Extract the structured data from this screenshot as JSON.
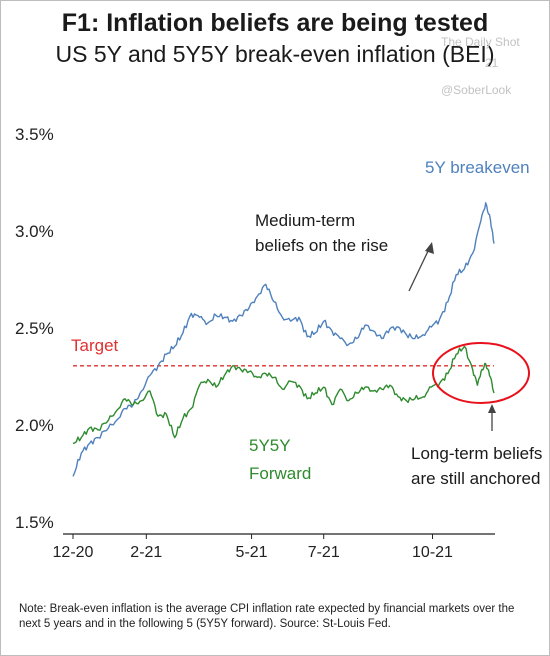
{
  "header": {
    "title": "F1: Inflation beliefs are being tested",
    "subtitle": "US 5Y and 5Y5Y break-even inflation (BEI)"
  },
  "watermark": {
    "line1": "The Daily Shot",
    "line2": "21",
    "handle": "@SoberLook"
  },
  "note": "Note: Break-even inflation is the average CPI inflation rate expected by financial markets over the next 5 years and in the following 5 (5Y5Y forward). Source: St-Louis Fed.",
  "colors": {
    "blue": "#4f81bd",
    "green": "#2e8b2e",
    "target": "#e03030",
    "circle": "#e8101a",
    "annotation": "#444444"
  },
  "chart_data": {
    "type": "line",
    "x_ticks": [
      "12-20",
      "2-21",
      "5-21",
      "7-21",
      "10-21"
    ],
    "y_ticks": [
      "1.5%",
      "2.0%",
      "2.5%",
      "3.0%",
      "3.5%"
    ],
    "ylim": [
      1.5,
      3.5
    ],
    "grid": false,
    "series": [
      {
        "name": "5Y breakeven",
        "color": "#4f81bd",
        "points": [
          [
            "2020-12-01",
            1.73
          ],
          [
            "2020-12-08",
            1.85
          ],
          [
            "2020-12-15",
            1.9
          ],
          [
            "2020-12-22",
            1.93
          ],
          [
            "2020-12-31",
            1.98
          ],
          [
            "2021-01-07",
            2.02
          ],
          [
            "2021-01-14",
            2.08
          ],
          [
            "2021-01-21",
            2.1
          ],
          [
            "2021-01-28",
            2.17
          ],
          [
            "2021-02-04",
            2.25
          ],
          [
            "2021-02-11",
            2.3
          ],
          [
            "2021-02-18",
            2.36
          ],
          [
            "2021-02-25",
            2.4
          ],
          [
            "2021-03-04",
            2.47
          ],
          [
            "2021-03-11",
            2.57
          ],
          [
            "2021-03-18",
            2.55
          ],
          [
            "2021-03-25",
            2.52
          ],
          [
            "2021-04-01",
            2.56
          ],
          [
            "2021-04-08",
            2.55
          ],
          [
            "2021-04-15",
            2.53
          ],
          [
            "2021-04-22",
            2.56
          ],
          [
            "2021-04-29",
            2.6
          ],
          [
            "2021-05-06",
            2.66
          ],
          [
            "2021-05-13",
            2.72
          ],
          [
            "2021-05-20",
            2.63
          ],
          [
            "2021-05-27",
            2.55
          ],
          [
            "2021-06-03",
            2.53
          ],
          [
            "2021-06-10",
            2.55
          ],
          [
            "2021-06-17",
            2.45
          ],
          [
            "2021-06-24",
            2.47
          ],
          [
            "2021-07-01",
            2.53
          ],
          [
            "2021-07-08",
            2.48
          ],
          [
            "2021-07-15",
            2.44
          ],
          [
            "2021-07-22",
            2.41
          ],
          [
            "2021-07-29",
            2.44
          ],
          [
            "2021-08-05",
            2.51
          ],
          [
            "2021-08-12",
            2.48
          ],
          [
            "2021-08-19",
            2.44
          ],
          [
            "2021-08-26",
            2.49
          ],
          [
            "2021-09-02",
            2.5
          ],
          [
            "2021-09-09",
            2.46
          ],
          [
            "2021-09-16",
            2.44
          ],
          [
            "2021-09-23",
            2.46
          ],
          [
            "2021-09-30",
            2.5
          ],
          [
            "2021-10-07",
            2.54
          ],
          [
            "2021-10-14",
            2.63
          ],
          [
            "2021-10-21",
            2.77
          ],
          [
            "2021-10-28",
            2.8
          ],
          [
            "2021-11-04",
            2.88
          ],
          [
            "2021-11-11",
            3.05
          ],
          [
            "2021-11-15",
            3.14
          ],
          [
            "2021-11-19",
            3.05
          ],
          [
            "2021-11-22",
            2.93
          ]
        ]
      },
      {
        "name": "5Y5Y Forward",
        "color": "#2e8b2e",
        "points": [
          [
            "2020-12-01",
            1.9
          ],
          [
            "2020-12-08",
            1.93
          ],
          [
            "2020-12-15",
            1.98
          ],
          [
            "2020-12-22",
            1.97
          ],
          [
            "2020-12-31",
            2.02
          ],
          [
            "2021-01-07",
            2.07
          ],
          [
            "2021-01-14",
            2.13
          ],
          [
            "2021-01-21",
            2.1
          ],
          [
            "2021-01-28",
            2.12
          ],
          [
            "2021-02-04",
            2.17
          ],
          [
            "2021-02-11",
            2.04
          ],
          [
            "2021-02-18",
            2.05
          ],
          [
            "2021-02-25",
            1.93
          ],
          [
            "2021-03-04",
            2.03
          ],
          [
            "2021-03-11",
            2.08
          ],
          [
            "2021-03-18",
            2.2
          ],
          [
            "2021-03-25",
            2.23
          ],
          [
            "2021-04-01",
            2.19
          ],
          [
            "2021-04-08",
            2.25
          ],
          [
            "2021-04-15",
            2.3
          ],
          [
            "2021-04-22",
            2.28
          ],
          [
            "2021-04-29",
            2.27
          ],
          [
            "2021-05-06",
            2.24
          ],
          [
            "2021-05-13",
            2.26
          ],
          [
            "2021-05-20",
            2.24
          ],
          [
            "2021-05-27",
            2.18
          ],
          [
            "2021-06-03",
            2.22
          ],
          [
            "2021-06-10",
            2.2
          ],
          [
            "2021-06-17",
            2.13
          ],
          [
            "2021-06-24",
            2.16
          ],
          [
            "2021-07-01",
            2.19
          ],
          [
            "2021-07-08",
            2.1
          ],
          [
            "2021-07-15",
            2.18
          ],
          [
            "2021-07-22",
            2.12
          ],
          [
            "2021-07-29",
            2.16
          ],
          [
            "2021-08-05",
            2.19
          ],
          [
            "2021-08-12",
            2.17
          ],
          [
            "2021-08-19",
            2.18
          ],
          [
            "2021-08-26",
            2.2
          ],
          [
            "2021-09-02",
            2.14
          ],
          [
            "2021-09-09",
            2.12
          ],
          [
            "2021-09-16",
            2.13
          ],
          [
            "2021-09-23",
            2.14
          ],
          [
            "2021-09-30",
            2.19
          ],
          [
            "2021-10-07",
            2.21
          ],
          [
            "2021-10-14",
            2.26
          ],
          [
            "2021-10-21",
            2.36
          ],
          [
            "2021-10-28",
            2.4
          ],
          [
            "2021-11-04",
            2.28
          ],
          [
            "2021-11-08",
            2.2
          ],
          [
            "2021-11-11",
            2.27
          ],
          [
            "2021-11-15",
            2.31
          ],
          [
            "2021-11-19",
            2.24
          ],
          [
            "2021-11-22",
            2.16
          ]
        ]
      }
    ],
    "reference_line": {
      "label": "Target",
      "value": 2.3,
      "style": "dashed",
      "color": "#e03030"
    },
    "labels": {
      "blue_series": "5Y breakeven",
      "green_series_line1": "5Y5Y",
      "green_series_line2": "Forward"
    },
    "annotations": {
      "medium_line1": "Medium-term",
      "medium_line2": "beliefs on the rise",
      "long_line1": "Long-term beliefs",
      "long_line2": "are still anchored"
    }
  }
}
